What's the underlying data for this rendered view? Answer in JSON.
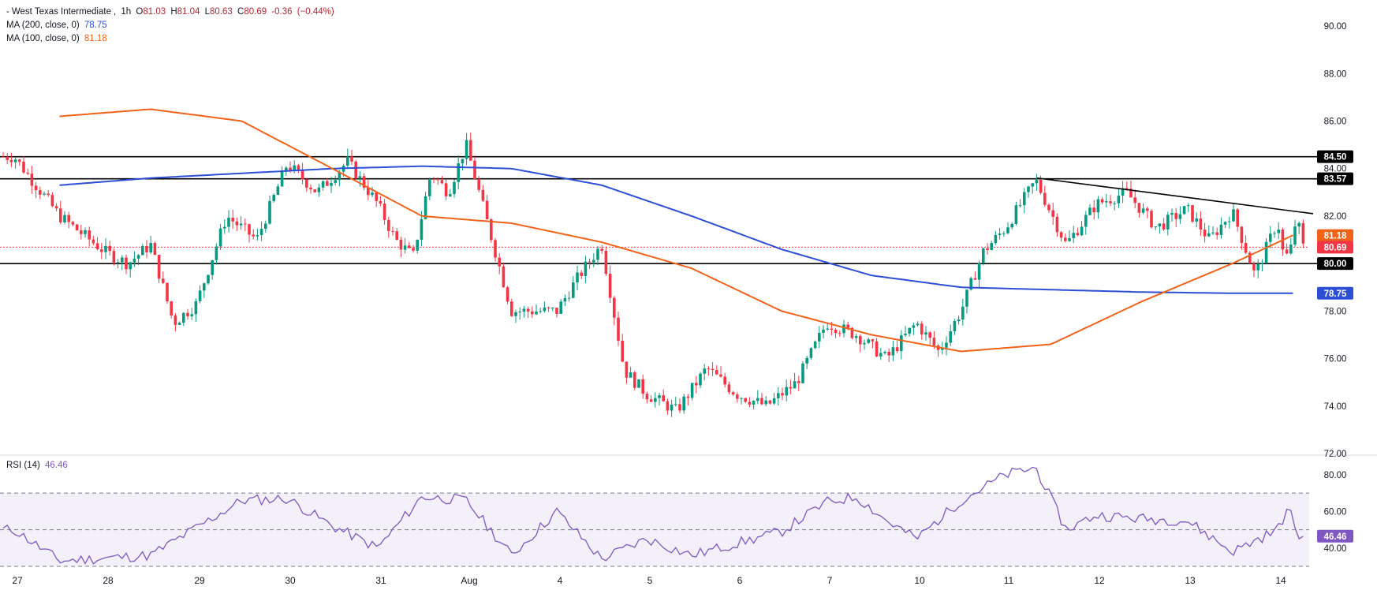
{
  "header": {
    "instrument": "West Texas Intermediate",
    "interval": "1h",
    "open_label": "O",
    "open": "81.03",
    "high_label": "H",
    "high": "81.04",
    "low_label": "L",
    "low": "80.63",
    "close_label": "C",
    "close": "80.69",
    "change": "-0.36",
    "change_pct": "(−0.44%)"
  },
  "indicators": {
    "ma200": {
      "label": "MA (200, close, 0)",
      "value": "78.75",
      "color": "#2c4fd6"
    },
    "ma100": {
      "label": "MA (100, close, 0)",
      "value": "81.18",
      "color": "#f2631a"
    },
    "rsi": {
      "label": "RSI (14)",
      "value": "46.46",
      "color": "#7e57c2"
    }
  },
  "colors": {
    "up": "#089981",
    "down": "#f23645",
    "ma200": "#2c4fd6",
    "ma100": "#f2631a",
    "rsi": "#7e57c2",
    "levels": "#000000"
  },
  "chart_data": [
    {
      "type": "candlestick",
      "title": "West Texas Intermediate, 1h",
      "x_labels": [
        "27",
        "28",
        "29",
        "30",
        "31",
        "Aug",
        "4",
        "5",
        "6",
        "7",
        "10",
        "11",
        "12",
        "13",
        "14"
      ],
      "y_ticks": [
        72,
        74,
        76,
        78,
        80,
        82,
        84,
        86,
        88,
        90
      ],
      "ylim": [
        72,
        90.6
      ],
      "horizontal_levels": [
        84.5,
        83.57,
        80.0
      ],
      "price_badges": [
        {
          "label": "84.50",
          "value": 84.5,
          "color": "#000000"
        },
        {
          "label": "83.57",
          "value": 83.57,
          "color": "#000000"
        },
        {
          "label": "81.18",
          "value": 81.18,
          "color": "#f2631a"
        },
        {
          "label": "80.69",
          "value": 80.69,
          "color": "#f23645"
        },
        {
          "label": "80.00",
          "value": 80.0,
          "color": "#000000"
        },
        {
          "label": "78.75",
          "value": 78.75,
          "color": "#2c4fd6"
        }
      ],
      "last_close": 80.69,
      "trendline": {
        "from_date": "11",
        "from_value": 83.6,
        "to_date": "14",
        "to_value": 82.0
      },
      "price_path": [
        {
          "d": "27",
          "v": 84.5
        },
        {
          "d": "27",
          "v": 82.0
        },
        {
          "d": "28",
          "v": 80.5
        },
        {
          "d": "28",
          "v": 80.0
        },
        {
          "d": "28",
          "v": 80.8
        },
        {
          "d": "28",
          "v": 77.5
        },
        {
          "d": "29",
          "v": 78.3
        },
        {
          "d": "29",
          "v": 82.0
        },
        {
          "d": "29",
          "v": 81.0
        },
        {
          "d": "30",
          "v": 84.2
        },
        {
          "d": "30",
          "v": 83.0
        },
        {
          "d": "30",
          "v": 84.3
        },
        {
          "d": "31",
          "v": 82.5
        },
        {
          "d": "31",
          "v": 81.0
        },
        {
          "d": "31",
          "v": 80.3
        },
        {
          "d": "31",
          "v": 83.8
        },
        {
          "d": "31",
          "v": 83.0
        },
        {
          "d": "Aug",
          "v": 85.0
        },
        {
          "d": "Aug",
          "v": 78.0
        },
        {
          "d": "4",
          "v": 78.0
        },
        {
          "d": "4",
          "v": 79.5
        },
        {
          "d": "4",
          "v": 80.8
        },
        {
          "d": "4",
          "v": 75.5
        },
        {
          "d": "5",
          "v": 74.5
        },
        {
          "d": "5",
          "v": 73.8
        },
        {
          "d": "5",
          "v": 75.6
        },
        {
          "d": "6",
          "v": 74.5
        },
        {
          "d": "6",
          "v": 74.0
        },
        {
          "d": "6",
          "v": 75.0
        },
        {
          "d": "7",
          "v": 77.5
        },
        {
          "d": "7",
          "v": 77.0
        },
        {
          "d": "7",
          "v": 76.0
        },
        {
          "d": "10",
          "v": 77.5
        },
        {
          "d": "10",
          "v": 76.3
        },
        {
          "d": "10",
          "v": 78.0
        },
        {
          "d": "10",
          "v": 80.5
        },
        {
          "d": "11",
          "v": 81.5
        },
        {
          "d": "11",
          "v": 83.5
        },
        {
          "d": "11",
          "v": 80.8
        },
        {
          "d": "12",
          "v": 82.5
        },
        {
          "d": "12",
          "v": 83.0
        },
        {
          "d": "12",
          "v": 81.5
        },
        {
          "d": "13",
          "v": 82.3
        },
        {
          "d": "13",
          "v": 81.0
        },
        {
          "d": "13",
          "v": 82.2
        },
        {
          "d": "13",
          "v": 79.5
        },
        {
          "d": "14",
          "v": 81.8
        },
        {
          "d": "14",
          "v": 80.2
        },
        {
          "d": "14",
          "v": 80.5
        },
        {
          "d": "14",
          "v": 82.0
        },
        {
          "d": "14",
          "v": 80.7
        }
      ],
      "ma200_path": [
        {
          "d": "27",
          "v": 83.3
        },
        {
          "d": "28",
          "v": 83.6
        },
        {
          "d": "30",
          "v": 84.0
        },
        {
          "d": "31",
          "v": 84.1
        },
        {
          "d": "Aug",
          "v": 84.0
        },
        {
          "d": "4",
          "v": 83.3
        },
        {
          "d": "5",
          "v": 82.0
        },
        {
          "d": "6",
          "v": 80.6
        },
        {
          "d": "7",
          "v": 79.5
        },
        {
          "d": "10",
          "v": 79.0
        },
        {
          "d": "11",
          "v": 78.9
        },
        {
          "d": "12",
          "v": 78.8
        },
        {
          "d": "13",
          "v": 78.75
        },
        {
          "d": "14",
          "v": 78.75
        }
      ],
      "ma100_path": [
        {
          "d": "27",
          "v": 86.2
        },
        {
          "d": "28",
          "v": 86.5
        },
        {
          "d": "29",
          "v": 86.0
        },
        {
          "d": "30",
          "v": 84.0
        },
        {
          "d": "31",
          "v": 82.0
        },
        {
          "d": "Aug",
          "v": 81.7
        },
        {
          "d": "4",
          "v": 80.9
        },
        {
          "d": "5",
          "v": 79.8
        },
        {
          "d": "6",
          "v": 78.0
        },
        {
          "d": "7",
          "v": 77.0
        },
        {
          "d": "10",
          "v": 76.3
        },
        {
          "d": "11",
          "v": 76.6
        },
        {
          "d": "12",
          "v": 78.4
        },
        {
          "d": "13",
          "v": 80.0
        },
        {
          "d": "14",
          "v": 81.2
        }
      ]
    },
    {
      "type": "line",
      "title": "RSI (14)",
      "y_ticks": [
        40.0,
        60.0,
        80.0
      ],
      "ylim": [
        30,
        86
      ],
      "bands": {
        "upper": 70,
        "middle": 50,
        "lower": 30
      },
      "last_value": 46.46,
      "rsi_path": [
        {
          "d": "27",
          "v": 50
        },
        {
          "d": "27",
          "v": 33
        },
        {
          "d": "28",
          "v": 36
        },
        {
          "d": "29",
          "v": 66
        },
        {
          "d": "30",
          "v": 67
        },
        {
          "d": "30",
          "v": 52
        },
        {
          "d": "31",
          "v": 40
        },
        {
          "d": "31",
          "v": 68
        },
        {
          "d": "Aug",
          "v": 66
        },
        {
          "d": "Aug",
          "v": 36
        },
        {
          "d": "4",
          "v": 60
        },
        {
          "d": "4",
          "v": 34
        },
        {
          "d": "5",
          "v": 45
        },
        {
          "d": "5",
          "v": 36
        },
        {
          "d": "6",
          "v": 49
        },
        {
          "d": "7",
          "v": 65
        },
        {
          "d": "7",
          "v": 68
        },
        {
          "d": "7",
          "v": 55
        },
        {
          "d": "10",
          "v": 45
        },
        {
          "d": "10",
          "v": 66
        },
        {
          "d": "11",
          "v": 80
        },
        {
          "d": "11",
          "v": 84
        },
        {
          "d": "11",
          "v": 50
        },
        {
          "d": "12",
          "v": 58
        },
        {
          "d": "12",
          "v": 56
        },
        {
          "d": "13",
          "v": 55
        },
        {
          "d": "13",
          "v": 38
        },
        {
          "d": "14",
          "v": 50
        },
        {
          "d": "14",
          "v": 62
        },
        {
          "d": "14",
          "v": 46.46
        }
      ]
    }
  ]
}
